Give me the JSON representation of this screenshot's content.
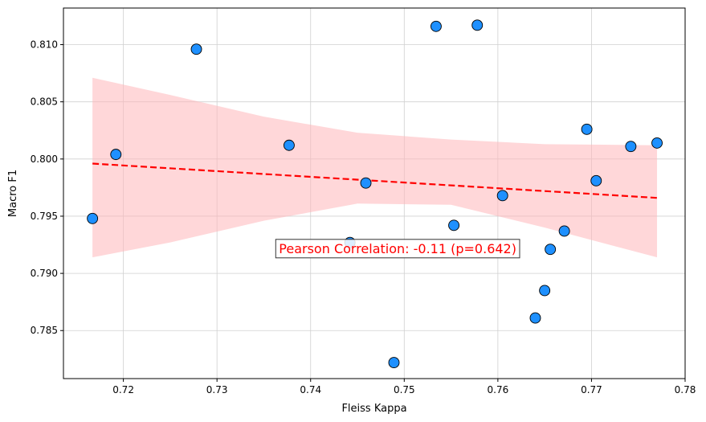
{
  "chart_data": {
    "type": "scatter",
    "xlabel": "Fleiss Kappa",
    "ylabel": "Macro F1",
    "xlim": [
      0.7136,
      0.78
    ],
    "ylim": [
      0.7808,
      0.8132
    ],
    "xticks": [
      "0.72",
      "0.73",
      "0.74",
      "0.75",
      "0.76",
      "0.77",
      "0.78"
    ],
    "yticks": [
      "0.785",
      "0.790",
      "0.795",
      "0.800",
      "0.805",
      "0.810"
    ],
    "grid": true,
    "points": [
      {
        "x": 0.7167,
        "y": 0.7948
      },
      {
        "x": 0.7192,
        "y": 0.8004
      },
      {
        "x": 0.7278,
        "y": 0.8096
      },
      {
        "x": 0.7377,
        "y": 0.8012
      },
      {
        "x": 0.7442,
        "y": 0.7927
      },
      {
        "x": 0.7459,
        "y": 0.7979
      },
      {
        "x": 0.7489,
        "y": 0.7822
      },
      {
        "x": 0.7534,
        "y": 0.8116
      },
      {
        "x": 0.7553,
        "y": 0.7942
      },
      {
        "x": 0.7578,
        "y": 0.8117
      },
      {
        "x": 0.7605,
        "y": 0.7968
      },
      {
        "x": 0.764,
        "y": 0.7861
      },
      {
        "x": 0.765,
        "y": 0.7885
      },
      {
        "x": 0.7656,
        "y": 0.7921
      },
      {
        "x": 0.7671,
        "y": 0.7937
      },
      {
        "x": 0.7695,
        "y": 0.8026
      },
      {
        "x": 0.7705,
        "y": 0.7981
      },
      {
        "x": 0.7742,
        "y": 0.8011
      },
      {
        "x": 0.777,
        "y": 0.8014
      }
    ],
    "regression": {
      "x": [
        0.7167,
        0.777
      ],
      "y": [
        0.7996,
        0.7966
      ]
    },
    "confidence_band": {
      "x": [
        0.7167,
        0.725,
        0.735,
        0.745,
        0.755,
        0.765,
        0.777
      ],
      "upper": [
        0.8071,
        0.8056,
        0.8037,
        0.8023,
        0.8017,
        0.8013,
        0.8012
      ],
      "lower": [
        0.7914,
        0.7927,
        0.7946,
        0.7961,
        0.796,
        0.794,
        0.7914
      ]
    },
    "annotation": {
      "text": "Pearson Correlation: -0.11 (p=0.642)",
      "x": 0.7493,
      "y": 0.7922
    },
    "colors": {
      "point_fill": "#1e90ff",
      "point_edge": "#000000",
      "regression": "#ff0000",
      "band": "#ffb6b9",
      "annotation_text": "#ff0000"
    }
  }
}
